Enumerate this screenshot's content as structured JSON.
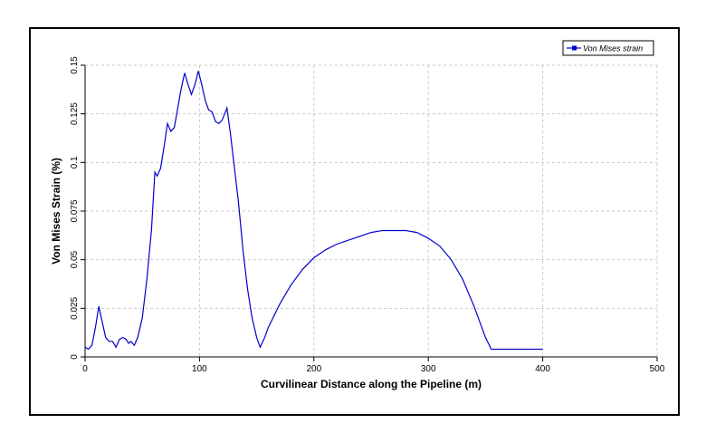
{
  "chart_data": {
    "type": "line",
    "x_label": "Curvilinear Distance along the Pipeline (m)",
    "y_label": "Von Mises Strain (%)",
    "xlim": [
      0,
      500
    ],
    "xticks": [
      0,
      100,
      200,
      300,
      400,
      500
    ],
    "ylim": [
      0,
      0.15
    ],
    "yticks": [
      0,
      0.025,
      0.05,
      0.075,
      0.1,
      0.125,
      0.15
    ],
    "grid": true,
    "legend": "upper right",
    "series": [
      {
        "name": "Von Mises strain",
        "color": "#0000cc",
        "x": [
          0,
          3,
          6,
          9,
          12,
          15,
          18,
          21,
          24,
          27,
          30,
          33,
          36,
          38,
          40,
          43,
          46,
          50,
          54,
          58,
          61,
          63,
          66,
          69,
          72,
          75,
          78,
          81,
          84,
          87,
          90,
          93,
          96,
          99,
          102,
          105,
          108,
          111,
          114,
          117,
          120,
          124,
          127,
          130,
          134,
          138,
          142,
          146,
          150,
          153,
          157,
          160,
          170,
          180,
          190,
          200,
          210,
          220,
          230,
          240,
          250,
          260,
          270,
          280,
          290,
          300,
          310,
          320,
          330,
          340,
          350,
          355,
          360,
          400
        ],
        "values": [
          0.005,
          0.004,
          0.006,
          0.015,
          0.026,
          0.018,
          0.01,
          0.008,
          0.008,
          0.005,
          0.009,
          0.01,
          0.009,
          0.007,
          0.008,
          0.006,
          0.01,
          0.02,
          0.04,
          0.065,
          0.095,
          0.093,
          0.097,
          0.108,
          0.12,
          0.116,
          0.118,
          0.128,
          0.138,
          0.146,
          0.14,
          0.135,
          0.14,
          0.147,
          0.14,
          0.132,
          0.127,
          0.126,
          0.121,
          0.12,
          0.122,
          0.128,
          0.115,
          0.1,
          0.08,
          0.055,
          0.035,
          0.02,
          0.01,
          0.005,
          0.01,
          0.015,
          0.027,
          0.037,
          0.045,
          0.051,
          0.055,
          0.058,
          0.06,
          0.062,
          0.064,
          0.065,
          0.065,
          0.065,
          0.064,
          0.061,
          0.057,
          0.05,
          0.04,
          0.026,
          0.01,
          0.004,
          0.004,
          0.004
        ]
      }
    ]
  }
}
